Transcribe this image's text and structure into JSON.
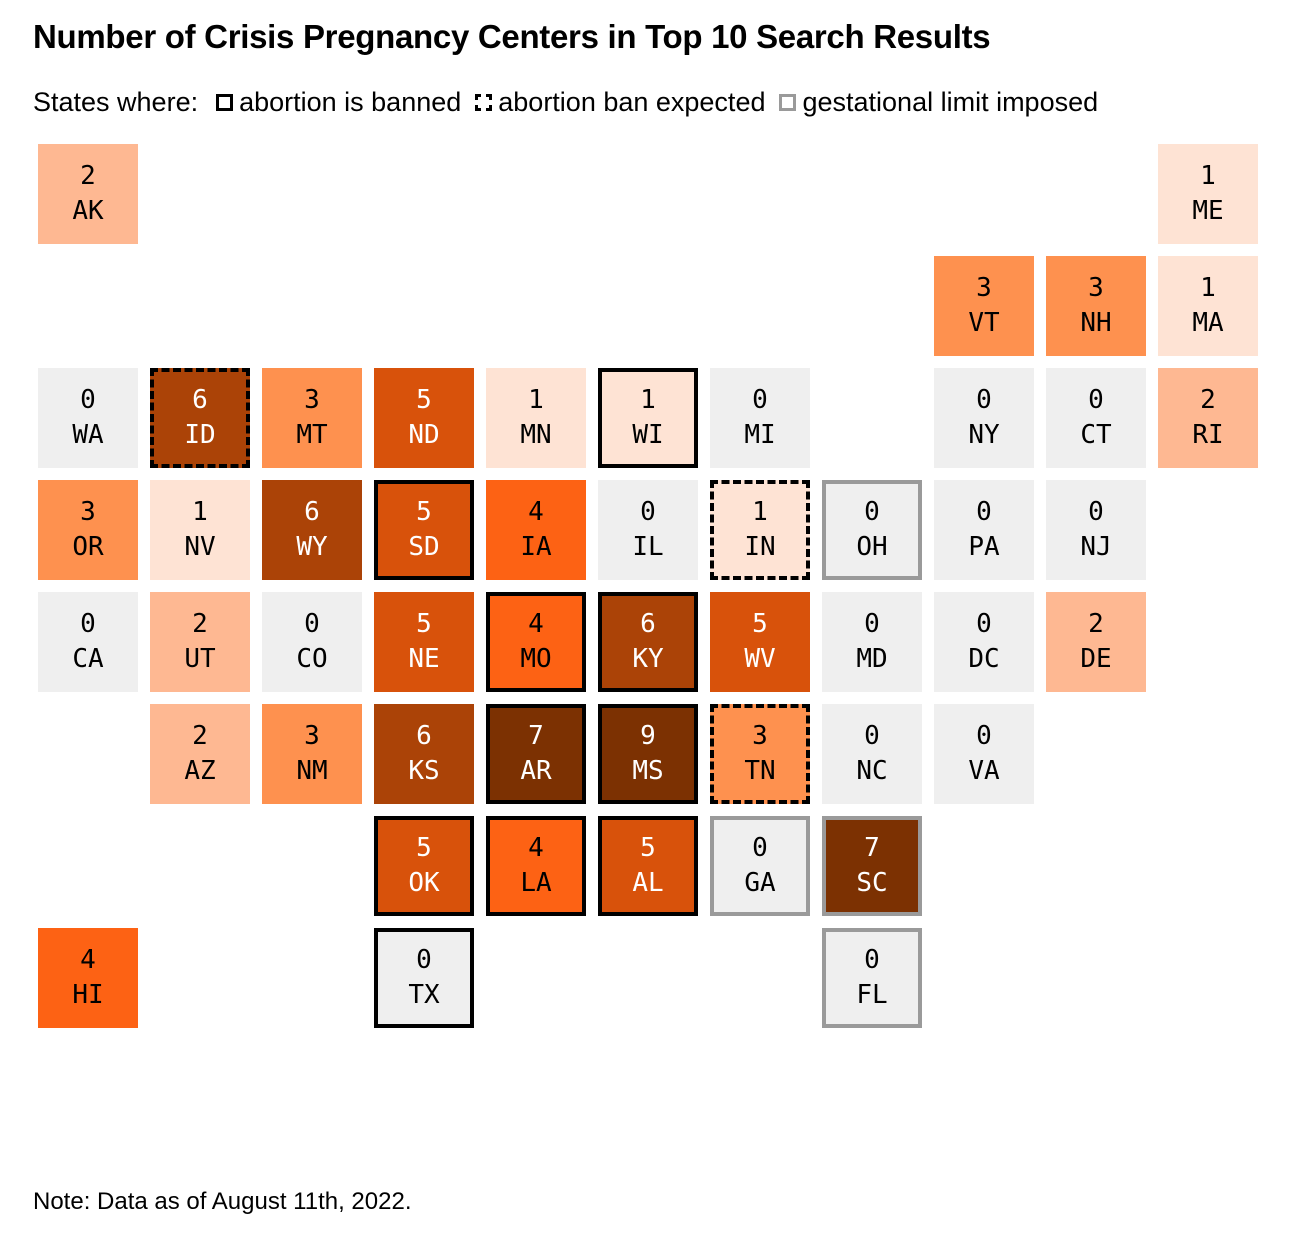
{
  "title": "Number of Crisis Pregnancy Centers in Top 10 Search Results",
  "legend": {
    "prefix": "States where:",
    "items": [
      {
        "key": "banned",
        "label": "abortion is banned"
      },
      {
        "key": "expected",
        "label": "abortion ban expected"
      },
      {
        "key": "limit",
        "label": "gestational limit imposed"
      }
    ]
  },
  "note": "Note: Data as of August 11th, 2022.",
  "colors": {
    "0": "#efefef",
    "1": "#fee3d4",
    "2": "#feb892",
    "3": "#fe914f",
    "4": "#fd6214",
    "5": "#d8520b",
    "6": "#ab4307",
    "7": "#7c3102",
    "9": "#7c3102",
    "text_dark": "#000000",
    "text_light": "#ffffff",
    "border_banned": "#000000",
    "border_limit": "#9a9a9a"
  },
  "chart_data": {
    "type": "heatmap",
    "title": "Number of Crisis Pregnancy Centers in Top 10 Search Results",
    "subtitle": "States where: abortion is banned, abortion ban expected, gestational limit imposed",
    "states": [
      {
        "abbr": "AK",
        "value": 2,
        "status": "none",
        "col": 0,
        "row": 0
      },
      {
        "abbr": "ME",
        "value": 1,
        "status": "none",
        "col": 10,
        "row": 0
      },
      {
        "abbr": "VT",
        "value": 3,
        "status": "none",
        "col": 8,
        "row": 1
      },
      {
        "abbr": "NH",
        "value": 3,
        "status": "none",
        "col": 9,
        "row": 1
      },
      {
        "abbr": "MA",
        "value": 1,
        "status": "none",
        "col": 10,
        "row": 1
      },
      {
        "abbr": "WA",
        "value": 0,
        "status": "none",
        "col": 0,
        "row": 2
      },
      {
        "abbr": "ID",
        "value": 6,
        "status": "expected",
        "col": 1,
        "row": 2
      },
      {
        "abbr": "MT",
        "value": 3,
        "status": "none",
        "col": 2,
        "row": 2
      },
      {
        "abbr": "ND",
        "value": 5,
        "status": "none",
        "col": 3,
        "row": 2
      },
      {
        "abbr": "MN",
        "value": 1,
        "status": "none",
        "col": 4,
        "row": 2
      },
      {
        "abbr": "WI",
        "value": 1,
        "status": "banned",
        "col": 5,
        "row": 2
      },
      {
        "abbr": "MI",
        "value": 0,
        "status": "none",
        "col": 6,
        "row": 2
      },
      {
        "abbr": "NY",
        "value": 0,
        "status": "none",
        "col": 8,
        "row": 2
      },
      {
        "abbr": "CT",
        "value": 0,
        "status": "none",
        "col": 9,
        "row": 2
      },
      {
        "abbr": "RI",
        "value": 2,
        "status": "none",
        "col": 10,
        "row": 2
      },
      {
        "abbr": "OR",
        "value": 3,
        "status": "none",
        "col": 0,
        "row": 3
      },
      {
        "abbr": "NV",
        "value": 1,
        "status": "none",
        "col": 1,
        "row": 3
      },
      {
        "abbr": "WY",
        "value": 6,
        "status": "none",
        "col": 2,
        "row": 3
      },
      {
        "abbr": "SD",
        "value": 5,
        "status": "banned",
        "col": 3,
        "row": 3
      },
      {
        "abbr": "IA",
        "value": 4,
        "status": "none",
        "col": 4,
        "row": 3
      },
      {
        "abbr": "IL",
        "value": 0,
        "status": "none",
        "col": 5,
        "row": 3
      },
      {
        "abbr": "IN",
        "value": 1,
        "status": "expected",
        "col": 6,
        "row": 3
      },
      {
        "abbr": "OH",
        "value": 0,
        "status": "limit",
        "col": 7,
        "row": 3
      },
      {
        "abbr": "PA",
        "value": 0,
        "status": "none",
        "col": 8,
        "row": 3
      },
      {
        "abbr": "NJ",
        "value": 0,
        "status": "none",
        "col": 9,
        "row": 3
      },
      {
        "abbr": "CA",
        "value": 0,
        "status": "none",
        "col": 0,
        "row": 4
      },
      {
        "abbr": "UT",
        "value": 2,
        "status": "none",
        "col": 1,
        "row": 4
      },
      {
        "abbr": "CO",
        "value": 0,
        "status": "none",
        "col": 2,
        "row": 4
      },
      {
        "abbr": "NE",
        "value": 5,
        "status": "none",
        "col": 3,
        "row": 4
      },
      {
        "abbr": "MO",
        "value": 4,
        "status": "banned",
        "col": 4,
        "row": 4
      },
      {
        "abbr": "KY",
        "value": 6,
        "status": "banned",
        "col": 5,
        "row": 4
      },
      {
        "abbr": "WV",
        "value": 5,
        "status": "none",
        "col": 6,
        "row": 4
      },
      {
        "abbr": "MD",
        "value": 0,
        "status": "none",
        "col": 7,
        "row": 4
      },
      {
        "abbr": "DC",
        "value": 0,
        "status": "none",
        "col": 8,
        "row": 4
      },
      {
        "abbr": "DE",
        "value": 2,
        "status": "none",
        "col": 9,
        "row": 4
      },
      {
        "abbr": "AZ",
        "value": 2,
        "status": "none",
        "col": 1,
        "row": 5
      },
      {
        "abbr": "NM",
        "value": 3,
        "status": "none",
        "col": 2,
        "row": 5
      },
      {
        "abbr": "KS",
        "value": 6,
        "status": "none",
        "col": 3,
        "row": 5
      },
      {
        "abbr": "AR",
        "value": 7,
        "status": "banned",
        "col": 4,
        "row": 5
      },
      {
        "abbr": "MS",
        "value": 9,
        "status": "banned",
        "col": 5,
        "row": 5
      },
      {
        "abbr": "TN",
        "value": 3,
        "status": "expected",
        "col": 6,
        "row": 5
      },
      {
        "abbr": "NC",
        "value": 0,
        "status": "none",
        "col": 7,
        "row": 5
      },
      {
        "abbr": "VA",
        "value": 0,
        "status": "none",
        "col": 8,
        "row": 5
      },
      {
        "abbr": "OK",
        "value": 5,
        "status": "banned",
        "col": 3,
        "row": 6
      },
      {
        "abbr": "LA",
        "value": 4,
        "status": "banned",
        "col": 4,
        "row": 6
      },
      {
        "abbr": "AL",
        "value": 5,
        "status": "banned",
        "col": 5,
        "row": 6
      },
      {
        "abbr": "GA",
        "value": 0,
        "status": "limit",
        "col": 6,
        "row": 6
      },
      {
        "abbr": "SC",
        "value": 7,
        "status": "limit",
        "col": 7,
        "row": 6
      },
      {
        "abbr": "HI",
        "value": 4,
        "status": "none",
        "col": 0,
        "row": 7
      },
      {
        "abbr": "TX",
        "value": 0,
        "status": "banned",
        "col": 3,
        "row": 7
      },
      {
        "abbr": "FL",
        "value": 0,
        "status": "limit",
        "col": 7,
        "row": 7
      }
    ]
  }
}
